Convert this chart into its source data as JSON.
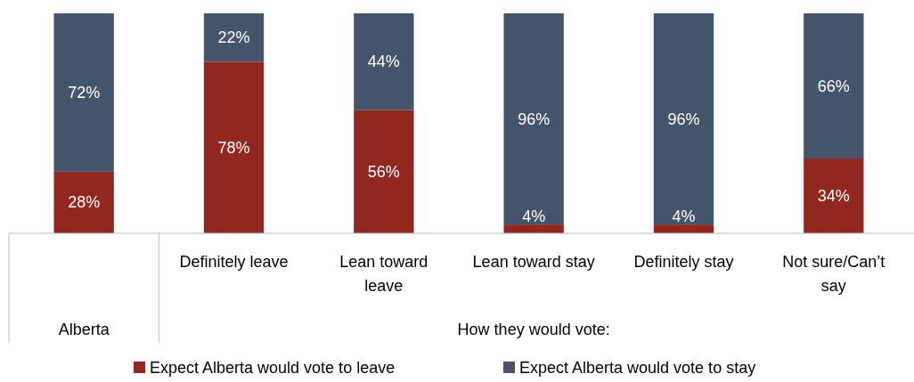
{
  "chart_data": {
    "type": "bar",
    "stacked": true,
    "legend": "bottom",
    "categories": [
      null,
      "Definitely leave",
      "Lean toward leave",
      "Lean toward stay",
      "Definitely stay",
      "Not sure/Can’t say"
    ],
    "series": [
      {
        "name": "Expect Alberta would vote to leave",
        "color": "#922720",
        "values": [
          28,
          78,
          56,
          4,
          4,
          34
        ],
        "value_labels": [
          "28%",
          "78%",
          "56%",
          "4%",
          "4%",
          "34%"
        ]
      },
      {
        "name": "Expect Alberta would vote to stay",
        "color": "#44546a",
        "values": [
          72,
          22,
          44,
          96,
          96,
          66
        ],
        "value_labels": [
          "72%",
          "22%",
          "44%",
          "96%",
          "96%",
          "66%"
        ]
      }
    ],
    "annotations": [
      "Alberta",
      "How they would vote:"
    ]
  }
}
